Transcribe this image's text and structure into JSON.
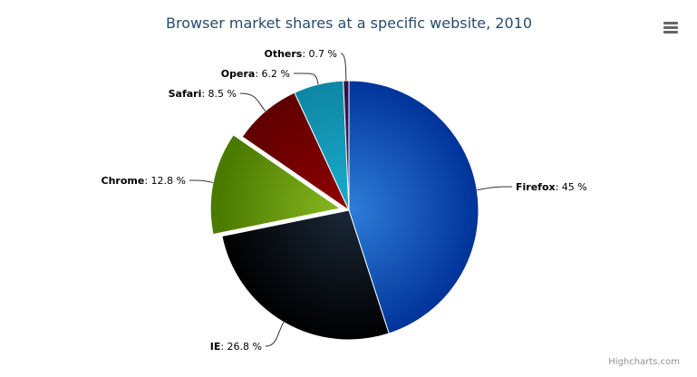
{
  "chart_data": {
    "type": "pie",
    "title": "Browser market shares at a specific website, 2010",
    "unit": "%",
    "slices": [
      {
        "name": "Firefox",
        "value": 45.0,
        "color": "#2f7ed8",
        "dark": "#003399"
      },
      {
        "name": "IE",
        "value": 26.8,
        "color": "#1a2838",
        "dark": "#000000"
      },
      {
        "name": "Chrome",
        "value": 12.8,
        "color": "#8bbc21",
        "dark": "#4b7a00",
        "sliced": true
      },
      {
        "name": "Safari",
        "value": 8.5,
        "color": "#910000",
        "dark": "#5e0000"
      },
      {
        "name": "Opera",
        "value": 6.2,
        "color": "#1aadce",
        "dark": "#0e86a3"
      },
      {
        "name": "Others",
        "value": 0.7,
        "color": "#492970",
        "dark": "#2a1045"
      }
    ]
  },
  "menu_icon": "hamburger-menu-icon",
  "credits": "Highcharts.com"
}
